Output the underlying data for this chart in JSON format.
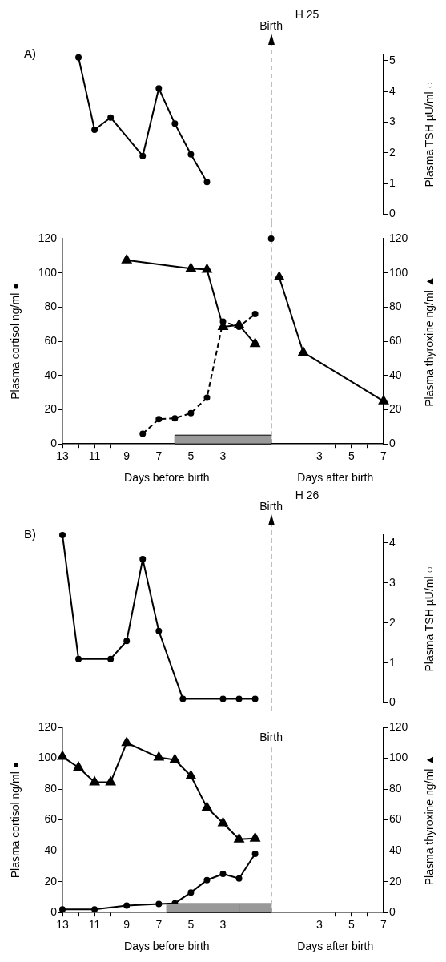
{
  "chart_data": [
    {
      "type": "line",
      "title": "H 25",
      "annotations": [
        "A)"
      ],
      "ylabel": "Plasma TSH µU/ml ○",
      "xlim": [
        -13,
        7
      ],
      "ylim": [
        0,
        5.2
      ],
      "yticks": [
        0,
        1,
        2,
        3,
        4,
        5
      ],
      "tick_labels": "y",
      "grid": false,
      "series": [
        {
          "color": "#000000",
          "marker": "circle",
          "x": [
            -12,
            -11,
            -10,
            -8,
            -7,
            -6,
            -5,
            -4
          ],
          "values": [
            5.1,
            2.75,
            3.15,
            1.9,
            4.1,
            2.95,
            1.95,
            1.05
          ]
        }
      ],
      "ref_lines": [
        {
          "axis": "x",
          "value": 0,
          "label": "Birth",
          "line_style": "dashed"
        }
      ]
    },
    {
      "type": "line",
      "ylabel": "Plasma cortisol ng/ml ●",
      "y2label": "Plasma thyroxine ng/ml ▲",
      "xlabel": "Days before birth",
      "annotations": [
        "Days after birth"
      ],
      "xlim": [
        -13,
        7
      ],
      "xticks": [
        {
          "value": -13,
          "label": "13"
        },
        {
          "value": -12,
          "label": null
        },
        {
          "value": -11,
          "label": "11"
        },
        {
          "value": -10,
          "label": null
        },
        {
          "value": -9,
          "label": "9"
        },
        {
          "value": -8,
          "label": null
        },
        {
          "value": -7,
          "label": "7"
        },
        {
          "value": -6,
          "label": null
        },
        {
          "value": -5,
          "label": "5"
        },
        {
          "value": -4,
          "label": null
        },
        {
          "value": -3,
          "label": "3"
        },
        {
          "value": -2,
          "label": null
        },
        {
          "value": -1,
          "label": null
        },
        {
          "value": 1,
          "label": null
        },
        {
          "value": 2,
          "label": null
        },
        3,
        {
          "value": 4,
          "label": null
        },
        5,
        {
          "value": 6,
          "label": null
        },
        7
      ],
      "ylim": [
        0,
        120
      ],
      "yticks": [
        0,
        20,
        40,
        60,
        80,
        100,
        120
      ],
      "y2lim": [
        0,
        120
      ],
      "y2ticks": [
        0,
        20,
        40,
        60,
        80,
        100,
        120
      ],
      "grid": false,
      "series": [
        {
          "color": "#000000",
          "marker": "circle",
          "line_style": "dashed",
          "x": [
            -8,
            -7,
            -6,
            -5,
            -4,
            -3,
            -2,
            -1,
            -0.5,
            0
          ],
          "values": [
            6,
            14.5,
            15,
            18,
            27,
            71.5,
            68.5,
            76,
            null,
            120
          ]
        },
        {
          "color": "#000000",
          "marker": "triangle",
          "axis": "y2",
          "x": [
            -9,
            -5,
            -4,
            -3,
            -2,
            -1,
            0,
            0.5,
            2,
            7
          ],
          "values": [
            107.5,
            102.5,
            102,
            68.5,
            69.5,
            58.5,
            null,
            97.5,
            53.5,
            25
          ]
        }
      ],
      "bands": [
        {
          "axis": "x",
          "from": -6,
          "to": 0,
          "color": "#999999"
        }
      ],
      "ref_lines": [
        {
          "axis": "x",
          "value": 0,
          "line_style": "dashed"
        }
      ]
    },
    {
      "type": "line",
      "title": "H 26",
      "annotations": [
        "B)"
      ],
      "ylabel": "Plasma TSH µU/ml ○",
      "xlim": [
        -13,
        7
      ],
      "ylim": [
        0,
        4.2
      ],
      "yticks": [
        0,
        1,
        2,
        3,
        4
      ],
      "tick_labels": "y",
      "grid": false,
      "series": [
        {
          "color": "#000000",
          "marker": "circle",
          "x": [
            -13,
            -12,
            -10,
            -9,
            -8,
            -7,
            -5.5,
            -3,
            -2,
            -1
          ],
          "values": [
            4.2,
            1.1,
            1.1,
            1.55,
            3.6,
            1.8,
            0.1,
            0.1,
            0.1,
            0.1
          ]
        }
      ],
      "ref_lines": [
        {
          "axis": "x",
          "value": 0,
          "label": "Birth",
          "line_style": "dashed"
        }
      ]
    },
    {
      "type": "line",
      "ylabel": "Plasma cortisol ng/ml ●",
      "y2label": "Plasma thyroxine ng/ml ▲",
      "xlabel": "Days before birth",
      "annotations": [
        "Days after birth"
      ],
      "xlim": [
        -13,
        7
      ],
      "xticks": [
        {
          "value": -13,
          "label": "13"
        },
        {
          "value": -12,
          "label": null
        },
        {
          "value": -11,
          "label": "11"
        },
        {
          "value": -10,
          "label": null
        },
        {
          "value": -9,
          "label": "9"
        },
        {
          "value": -8,
          "label": null
        },
        {
          "value": -7,
          "label": "7"
        },
        {
          "value": -6,
          "label": null
        },
        {
          "value": -5,
          "label": "5"
        },
        {
          "value": -4,
          "label": null
        },
        {
          "value": -3,
          "label": "3"
        },
        {
          "value": -2,
          "label": null
        },
        {
          "value": -1,
          "label": null
        },
        {
          "value": 1,
          "label": null
        },
        {
          "value": 2,
          "label": null
        },
        3,
        {
          "value": 4,
          "label": null
        },
        5,
        {
          "value": 6,
          "label": null
        },
        7
      ],
      "ylim": [
        0,
        120
      ],
      "yticks": [
        0,
        20,
        40,
        60,
        80,
        100,
        120
      ],
      "y2lim": [
        0,
        120
      ],
      "y2ticks": [
        0,
        20,
        40,
        60,
        80,
        100,
        120
      ],
      "grid": false,
      "series": [
        {
          "color": "#000000",
          "marker": "circle",
          "x": [
            -13,
            -11,
            -9,
            -7,
            -6,
            -5,
            -4,
            -3,
            -2,
            -1
          ],
          "values": [
            2,
            2,
            4.5,
            5.5,
            6,
            13,
            21,
            25,
            22,
            38
          ]
        },
        {
          "color": "#000000",
          "marker": "triangle",
          "axis": "y2",
          "x": [
            -13,
            -12,
            -11,
            -10,
            -9,
            -7,
            -6,
            -5,
            -4,
            -3,
            -2,
            -1
          ],
          "values": [
            101,
            94,
            84.5,
            84.5,
            110,
            100.5,
            99,
            88.5,
            68,
            58,
            47.5,
            48
          ]
        }
      ],
      "bands": [
        {
          "axis": "x",
          "from": -6.5,
          "to": -2,
          "color": "#999999"
        },
        {
          "axis": "x",
          "from": -2,
          "to": 0,
          "color": "#999999"
        }
      ],
      "ref_lines": [
        {
          "axis": "x",
          "value": 0,
          "label": "Birth",
          "line_style": "dashed"
        }
      ]
    }
  ]
}
